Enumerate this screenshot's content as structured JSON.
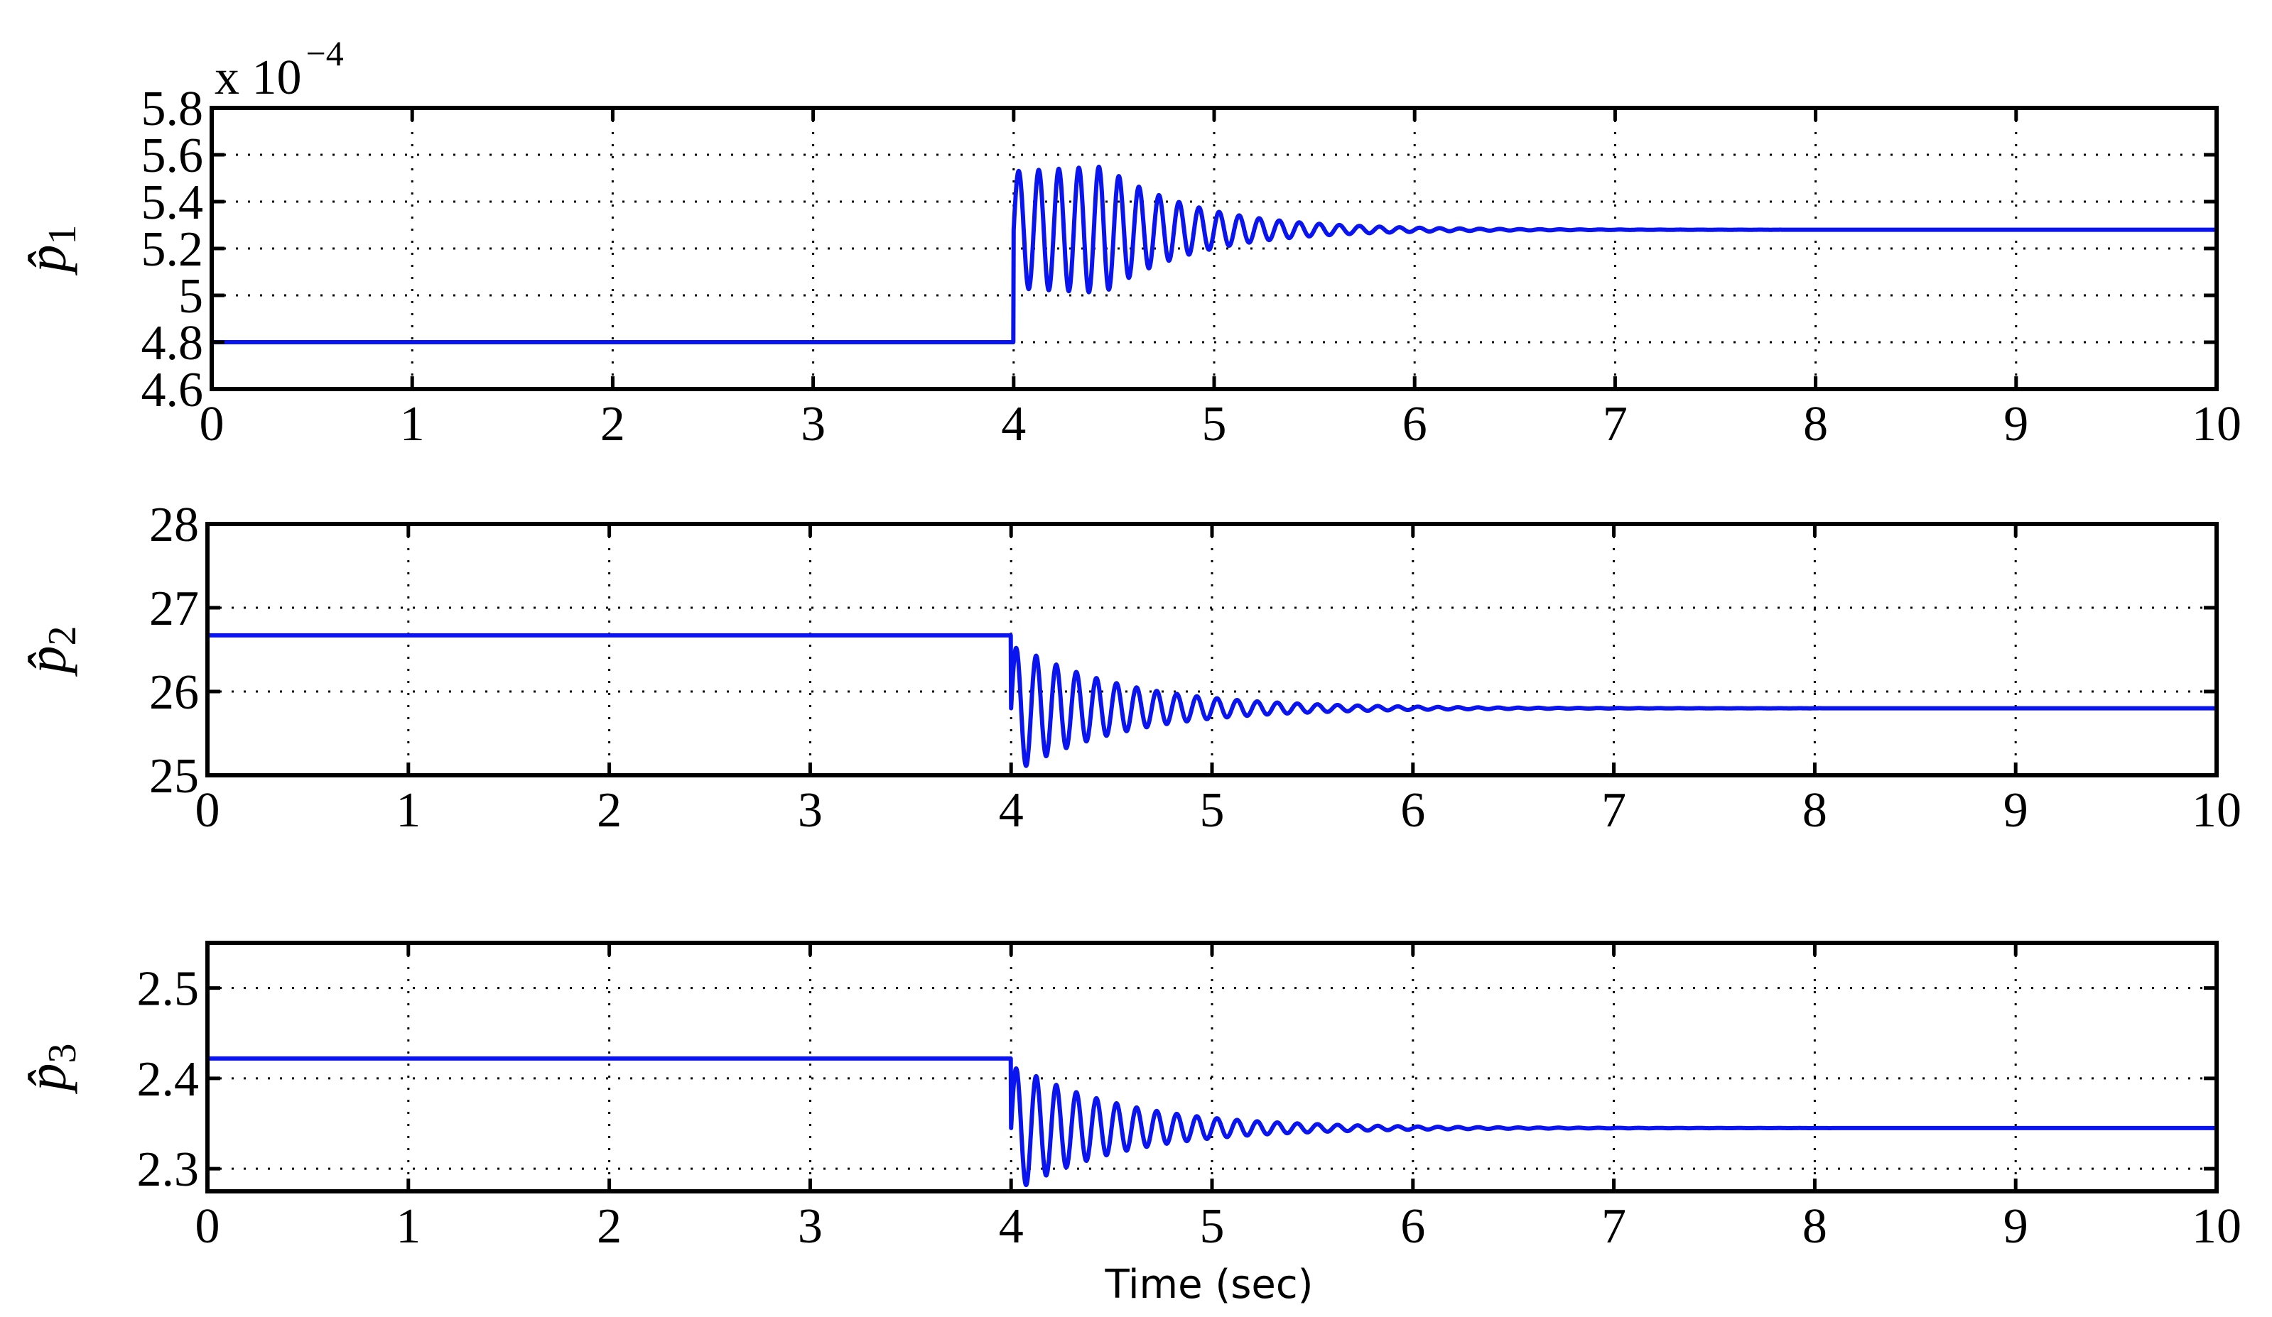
{
  "chart_data": [
    {
      "type": "line",
      "ylabel_base": "p̂",
      "ylabel_sub": "1",
      "exponent_base": "x 10",
      "exponent_power": "−4",
      "xlim": [
        0,
        10
      ],
      "ylim": [
        4.6,
        5.8
      ],
      "x_ticks": [
        "0",
        "1",
        "2",
        "3",
        "4",
        "5",
        "6",
        "7",
        "8",
        "9",
        "10"
      ],
      "y_ticks": [
        "4.6",
        "4.8",
        "5",
        "5.2",
        "5.4",
        "5.6",
        "5.8"
      ],
      "grid": true,
      "series": [
        {
          "color": "#0a14ef",
          "initial": 4.8,
          "step_time": 4.0,
          "final": 5.28,
          "start_amplitude": 0.25,
          "peak_amplitude": 0.27,
          "peak_time": 4.45,
          "decay_rate": 2.2,
          "period": 0.1
        }
      ]
    },
    {
      "type": "line",
      "ylabel_base": "p̂",
      "ylabel_sub": "2",
      "xlim": [
        0,
        10
      ],
      "ylim": [
        25,
        28
      ],
      "x_ticks": [
        "0",
        "1",
        "2",
        "3",
        "4",
        "5",
        "6",
        "7",
        "8",
        "9",
        "10"
      ],
      "y_ticks": [
        "25",
        "26",
        "27",
        "28"
      ],
      "grid": true,
      "series": [
        {
          "color": "#0a14ef",
          "initial": 26.67,
          "step_time": 4.0,
          "final": 25.8,
          "start_amplitude": 0.72,
          "peak_amplitude": 0.72,
          "peak_time": 4.05,
          "decay_rate": 1.85,
          "period": 0.1
        }
      ]
    },
    {
      "type": "line",
      "ylabel_base": "p̂",
      "ylabel_sub": "3",
      "xlim": [
        0,
        10
      ],
      "ylim": [
        2.275,
        2.55
      ],
      "x_ticks": [
        "0",
        "1",
        "2",
        "3",
        "4",
        "5",
        "6",
        "7",
        "8",
        "9",
        "10"
      ],
      "y_ticks": [
        "2.3",
        "2.4",
        "2.5"
      ],
      "grid": true,
      "series": [
        {
          "color": "#0a14ef",
          "initial": 2.422,
          "step_time": 4.0,
          "final": 2.345,
          "start_amplitude": 0.066,
          "peak_amplitude": 0.066,
          "peak_time": 4.05,
          "decay_rate": 1.85,
          "period": 0.1
        }
      ]
    }
  ],
  "xlabel": "Time (sec)"
}
